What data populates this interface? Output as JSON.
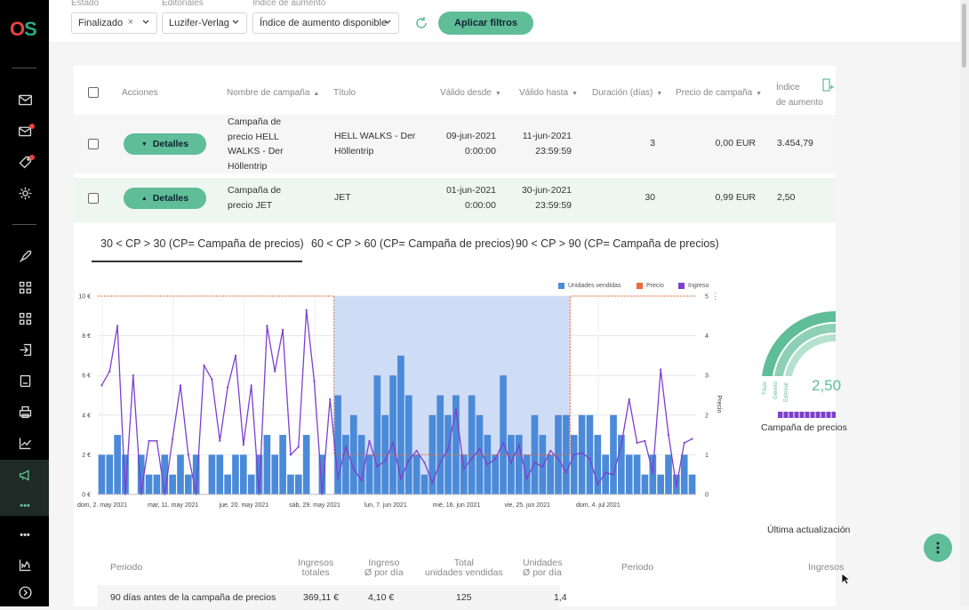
{
  "app": {
    "logo_o": "O",
    "logo_s": "S"
  },
  "filters": {
    "estado": {
      "label": "Estado",
      "value": "Finalizado"
    },
    "editoriales": {
      "label": "Editoriales",
      "value": "Luzifer-Verlag"
    },
    "indice": {
      "label": "Indice de aumento",
      "value": "Índice de aumento disponible"
    },
    "apply_label": "Aplicar filtros"
  },
  "table": {
    "headers": {
      "acciones": "Acciones",
      "nombre": "Nombre de campaña",
      "titulo": "Título",
      "valido_desde": "Válido desde",
      "valido_hasta": "Válido hasta",
      "duracion": "Duración (días)",
      "precio": "Precio de campaña",
      "indice_1": "Índice",
      "indice_2": "de aumento"
    },
    "rows": [
      {
        "details_label": "Detalles",
        "nombre": [
          "Campaña de",
          "precio HELL",
          "WALKS - Der",
          "Höllentrip"
        ],
        "titulo": [
          "HELL WALKS - Der",
          "Höllentrip"
        ],
        "desde": [
          "09-jun-2021",
          "0:00:00"
        ],
        "hasta": [
          "11-jun-2021",
          "23:59:59"
        ],
        "duracion": "3",
        "precio": "0,00 EUR",
        "indice": "3.454,79"
      },
      {
        "details_label": "Detalles",
        "nombre": [
          "Campaña de",
          "precio JET"
        ],
        "titulo": [
          "JET"
        ],
        "desde": [
          "01-jun-2021",
          "0:00:00"
        ],
        "hasta": [
          "30-jun-2021",
          "23:59:59"
        ],
        "duracion": "30",
        "precio": "0,99 EUR",
        "indice": "2,50"
      }
    ]
  },
  "tabs": [
    "30 < CP > 30 (CP= Campaña de precios)",
    "60 < CP > 60 (CP= Campaña de precios)",
    "90 < CP > 90 (CP= Campaña de precios)"
  ],
  "chart_data": {
    "type": "bar",
    "legend": [
      "Unidades vendidas",
      "Precio",
      "Ingreso"
    ],
    "colors": {
      "units": "#4a8ad8",
      "price": "#ef6a3c",
      "revenue": "#7d3fd0",
      "highlight": "#cfdcf5"
    },
    "y_left_ticks": [
      "0 €",
      "2 €",
      "4 €",
      "6 €",
      "8 €",
      "10 €"
    ],
    "y_right_ticks": [
      "0",
      "1",
      "2",
      "3",
      "4",
      "5"
    ],
    "ylabel_right": "Precio",
    "x_ticks": [
      "dom, 2. may 2021",
      "mar, 11. may 2021",
      "jue, 20. may 2021",
      "sáb, 29. may 2021",
      "lun, 7. jun 2021",
      "mié, 16. jun 2021",
      "vie, 25. jun 2021",
      "dom, 4. jul 2021"
    ],
    "units": [
      1,
      1,
      1.5,
      1,
      0,
      1,
      0.5,
      0.5,
      1,
      0.5,
      1,
      0.5,
      1,
      0,
      1,
      1,
      0.5,
      1,
      1,
      0.5,
      1,
      1.5,
      1,
      1.5,
      0.5,
      0.5,
      1.5,
      0,
      1,
      0,
      2.5,
      1.5,
      2,
      1.5,
      1,
      3,
      2,
      3,
      3.5,
      2.5,
      1,
      0.5,
      2,
      2.5,
      2,
      2.5,
      1,
      2.5,
      2,
      1.5,
      1,
      3,
      1.5,
      1.5,
      1,
      2,
      1.5,
      1,
      2,
      2,
      1.5,
      2,
      2,
      1.5,
      1,
      2,
      1.5,
      1,
      1,
      0.5,
      1,
      0.5,
      1,
      0.5,
      1,
      0.5
    ],
    "price_ylim": [
      0,
      5
    ],
    "price_period_before": 5,
    "price_period_campaign": 1,
    "price_period_after": 5,
    "campaign_range": [
      30,
      59
    ],
    "revenue": [
      5.5,
      6.2,
      8.5,
      0,
      6,
      0,
      2.7,
      2.7,
      0,
      2.8,
      5.5,
      2,
      0,
      6.5,
      5.8,
      2.7,
      5.4,
      7,
      2.5,
      5.5,
      0,
      8.5,
      6.2,
      8.3,
      2,
      2.4,
      9.3,
      5.7,
      0,
      4.8,
      0.8,
      2.4,
      1.3,
      0.7,
      2.7,
      1.4,
      1.7,
      2.6,
      0.8,
      1.7,
      2.2,
      1.6,
      0.6,
      1.6,
      2.3,
      4.3,
      1.3,
      1.8,
      2.3,
      1.5,
      1.8,
      2.6,
      1.6,
      2.5,
      0.8,
      1.6,
      1.4,
      2.2,
      1.8,
      1.1,
      2.0,
      2.1,
      1.8,
      0.5,
      1.1,
      1.0,
      2.5,
      4.8,
      2.6,
      2.7,
      1.1,
      6.3,
      3.0,
      0.4,
      2.6,
      2.8
    ],
    "ylim_left": [
      0,
      10
    ]
  },
  "gauge": {
    "value": "2,50",
    "labels": [
      "Título",
      "Género",
      "Editorial"
    ],
    "caption": "Campaña de precios"
  },
  "updated_label": "Última actualización",
  "summary": {
    "headers": {
      "periodo": "Periodo",
      "ingresos": [
        "Ingresos",
        "totales"
      ],
      "ingreso_dia": [
        "Ingreso",
        "Ø por día"
      ],
      "total_units": [
        "Total",
        "unidades vendidas"
      ],
      "unidades_dia": [
        "Unidades",
        "Ø por día"
      ],
      "periodo_right": "Periodo",
      "ingresos_right": "Ingresos"
    },
    "row": {
      "periodo": "90 días antes de la campaña de precios",
      "ingresos": "369,11  €",
      "ingreso_dia": "4,10  €",
      "total": "125",
      "unidades_dia": "1,4"
    }
  }
}
